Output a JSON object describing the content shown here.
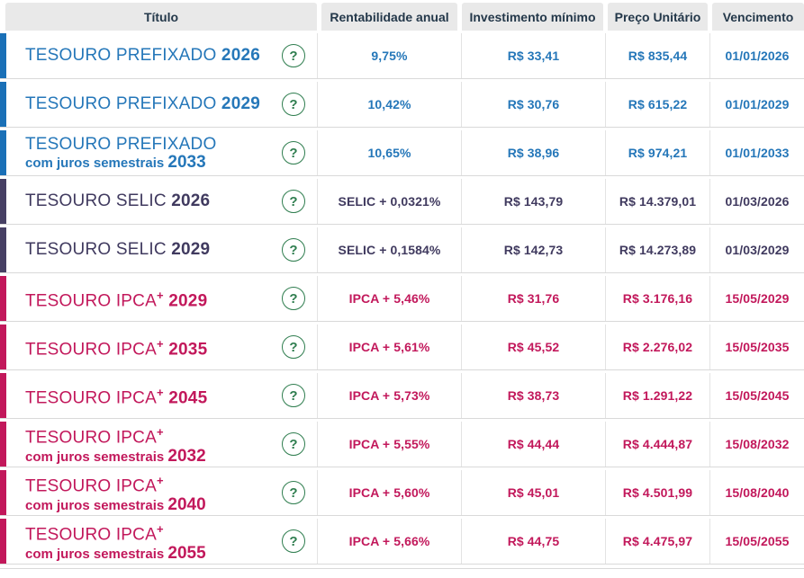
{
  "table": {
    "columns": {
      "title": "Título",
      "rate": "Rentabilidade anual",
      "min_investment": "Investimento mínimo",
      "unit_price": "Preço Unitário",
      "maturity": "Vencimento"
    },
    "rows": [
      {
        "title": "TESOURO PREFIXADO",
        "plus": "",
        "subtitle": "",
        "year": "2026",
        "theme": "blue",
        "rate": "9,75%",
        "min_investment": "R$ 33,41",
        "unit_price": "R$ 835,44",
        "maturity": "01/01/2026"
      },
      {
        "title": "TESOURO PREFIXADO",
        "plus": "",
        "subtitle": "",
        "year": "2029",
        "theme": "blue",
        "rate": "10,42%",
        "min_investment": "R$ 30,76",
        "unit_price": "R$ 615,22",
        "maturity": "01/01/2029"
      },
      {
        "title": "TESOURO PREFIXADO",
        "plus": "",
        "subtitle": "com juros semestrais",
        "year": "2033",
        "theme": "blue",
        "rate": "10,65%",
        "min_investment": "R$ 38,96",
        "unit_price": "R$ 974,21",
        "maturity": "01/01/2033"
      },
      {
        "title": "TESOURO SELIC",
        "plus": "",
        "subtitle": "",
        "year": "2026",
        "theme": "purple",
        "rate": "SELIC + 0,0321%",
        "min_investment": "R$ 143,79",
        "unit_price": "R$ 14.379,01",
        "maturity": "01/03/2026"
      },
      {
        "title": "TESOURO SELIC",
        "plus": "",
        "subtitle": "",
        "year": "2029",
        "theme": "purple",
        "rate": "SELIC + 0,1584%",
        "min_investment": "R$ 142,73",
        "unit_price": "R$ 14.273,89",
        "maturity": "01/03/2029"
      },
      {
        "title": "TESOURO IPCA",
        "plus": "+",
        "subtitle": "",
        "year": "2029",
        "theme": "pink",
        "rate": "IPCA + 5,46%",
        "min_investment": "R$ 31,76",
        "unit_price": "R$ 3.176,16",
        "maturity": "15/05/2029"
      },
      {
        "title": "TESOURO IPCA",
        "plus": "+",
        "subtitle": "",
        "year": "2035",
        "theme": "pink",
        "rate": "IPCA + 5,61%",
        "min_investment": "R$ 45,52",
        "unit_price": "R$ 2.276,02",
        "maturity": "15/05/2035"
      },
      {
        "title": "TESOURO IPCA",
        "plus": "+",
        "subtitle": "",
        "year": "2045",
        "theme": "pink",
        "rate": "IPCA + 5,73%",
        "min_investment": "R$ 38,73",
        "unit_price": "R$ 1.291,22",
        "maturity": "15/05/2045"
      },
      {
        "title": "TESOURO IPCA",
        "plus": "+",
        "subtitle": "com juros semestrais",
        "year": "2032",
        "theme": "pink",
        "rate": "IPCA + 5,55%",
        "min_investment": "R$ 44,44",
        "unit_price": "R$ 4.444,87",
        "maturity": "15/08/2032"
      },
      {
        "title": "TESOURO IPCA",
        "plus": "+",
        "subtitle": "com juros semestrais",
        "year": "2040",
        "theme": "pink",
        "rate": "IPCA + 5,60%",
        "min_investment": "R$ 45,01",
        "unit_price": "R$ 4.501,99",
        "maturity": "15/08/2040"
      },
      {
        "title": "TESOURO IPCA",
        "plus": "+",
        "subtitle": "com juros semestrais",
        "year": "2055",
        "theme": "pink",
        "rate": "IPCA + 5,66%",
        "min_investment": "R$ 44,75",
        "unit_price": "R$ 4.475,97",
        "maturity": "15/05/2055"
      }
    ]
  },
  "icons": {
    "help_glyph": "?"
  },
  "colors": {
    "header_bg": "#e9e9e9",
    "header_text": "#24384a",
    "row_border": "#d9d9d9",
    "help_green": "#2e7d4e",
    "themes": {
      "blue": {
        "bar": "#1a70b7",
        "text": "#2577b9"
      },
      "purple": {
        "bar": "#474064",
        "text": "#403a5f"
      },
      "pink": {
        "bar": "#c2185b",
        "text": "#c2185b"
      }
    }
  }
}
